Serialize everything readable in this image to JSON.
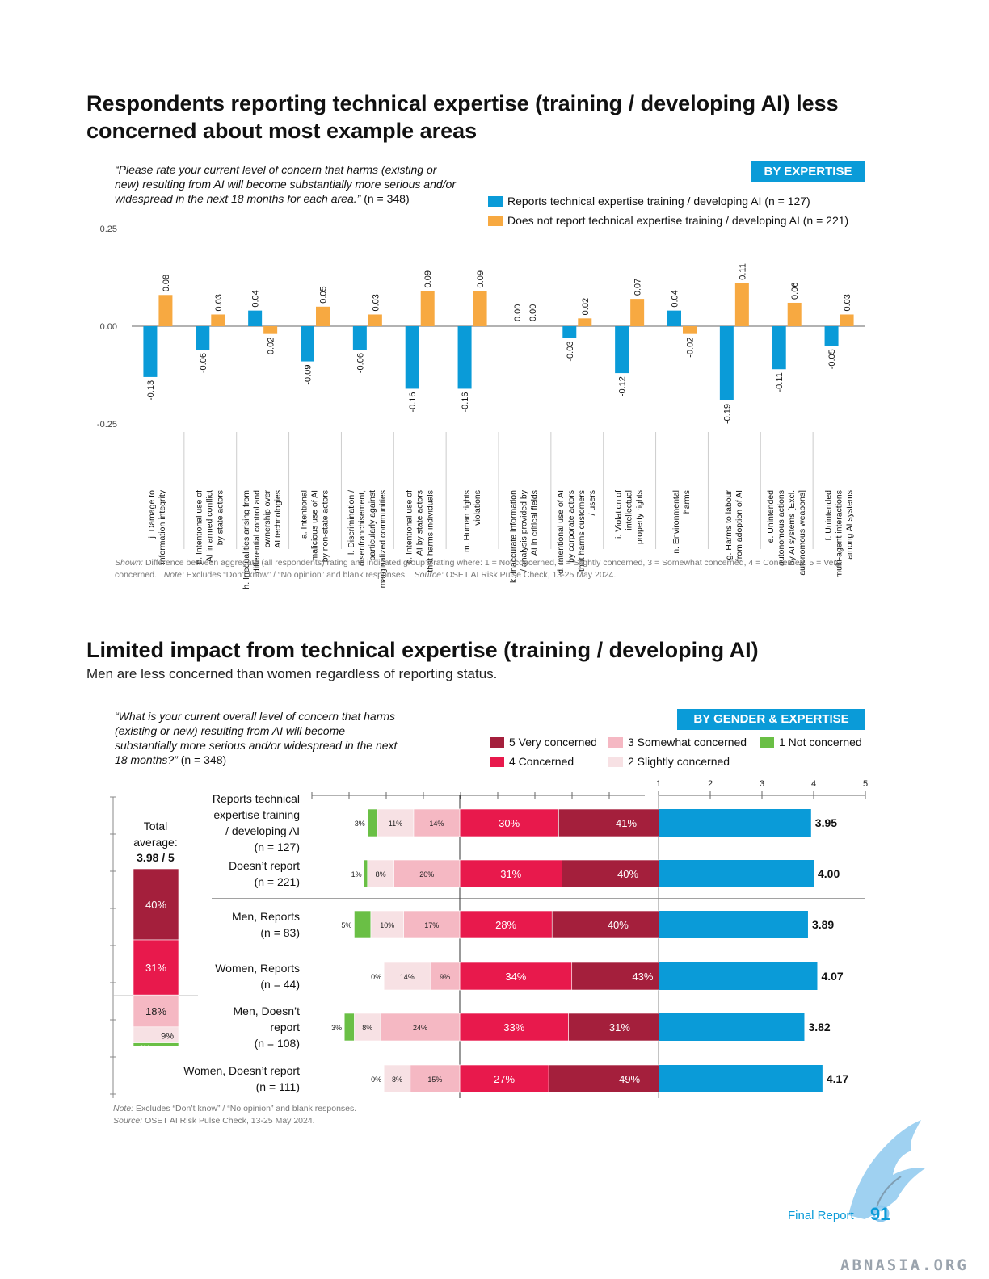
{
  "chart1": {
    "title": "Respondents reporting technical expertise (training / developing AI) less concerned about most example areas",
    "question": "“Please rate your current level of concern that harms (existing or new) resulting from AI will become substantially more serious and/or widespread in the next 18 months for each area.”",
    "question_n": "(n = 348)",
    "badge": "BY EXPERTISE",
    "legend": [
      {
        "label": "Reports technical expertise training / developing AI (n = 127)",
        "color": "#0a9bd8"
      },
      {
        "label": "Does not report technical expertise training / developing AI (n = 221)",
        "color": "#f7a941"
      }
    ],
    "footnote_shown_label": "Shown:",
    "footnote_shown": "Difference between aggregate (all respondents) rating and indicated group’s rating where: 1 = Not concerned, 2 = Slightly concerned, 3 = Somewhat concerned, 4 = Concerned, 5 = Very concerned.",
    "footnote_note_label": "Note:",
    "footnote_note": "Excludes “Don’t know” / “No opinion” and blank responses.",
    "footnote_source_label": "Source:",
    "footnote_source": "OSET AI Risk Pulse Check, 13-25 May 2024."
  },
  "chart2": {
    "title": "Limited impact from technical expertise (training / developing AI)",
    "subtitle": "Men are less concerned than women regardless of reporting status.",
    "question": "“What is your current overall level of concern that harms (existing or new) resulting from AI will become substantially more serious and/or widespread in the next 18 months?”",
    "question_n": "(n = 348)",
    "badge": "BY GENDER & EXPERTISE",
    "legend": [
      {
        "label": "5 Very concerned",
        "color": "#a41f3c"
      },
      {
        "label": "3 Somewhat concerned",
        "color": "#f5b8c3"
      },
      {
        "label": "1 Not concerned",
        "color": "#6abf45"
      },
      {
        "label": "4 Concerned",
        "color": "#e8194c"
      },
      {
        "label": "2 Slightly concerned",
        "color": "#f7e1e4"
      }
    ],
    "total_label": "Total\naverage:",
    "total_value": "3.98 / 5",
    "note_label": "Note:",
    "note": "Excludes “Don’t know” / “No opinion” and blank responses.",
    "source_label": "Source:",
    "source": "OSET AI Risk Pulse Check, 13-25 May 2024."
  },
  "page": {
    "footer_label": "Final Report",
    "page_number": "91",
    "watermark": "ABNASIA.ORG"
  },
  "chart_data": [
    {
      "type": "bar",
      "ylim": [
        -0.25,
        0.25
      ],
      "yticks": [
        "0.25",
        "0.00",
        "-0.25"
      ],
      "grid": false,
      "categories": [
        "j. Damage to\ninformation integrity",
        "b. Intentional use of\nAI in armed conflict\nby state actors",
        "h. Inequalities arising from\ndifferential control and\nownership over\nAI technologies",
        "a. Intentional\nmalicious use of AI\nby non-state actors",
        "l. Discrimination /\ndisenfranchisement,\nparticularly against\nmarginalized communities",
        "c. Intentional use of\nAI by state actors\nthat harms individuals",
        "m. Human rights\nviolations",
        "k. Inaccurate information\n/ analysis provided by\nAI in critical fields",
        "d. Intentional use of AI\nby corporate actors\nthat harms customers\n/ users",
        "i. Violation of\nintellectual\nproperty rights",
        "n. Environmental\nharms",
        "g. Harms to labour\nfrom adoption of AI",
        "e. Unintended\nautonomous actions\nby AI systems [Excl.\nautonomous weapons]",
        "f. Unintended\nmulti-agent interactions\namong AI systems"
      ],
      "series": [
        {
          "name": "Reports technical expertise training / developing AI (n = 127)",
          "values": [
            -0.13,
            -0.06,
            0.04,
            -0.09,
            -0.06,
            -0.16,
            -0.16,
            0.0,
            -0.03,
            -0.12,
            0.04,
            -0.19,
            -0.11,
            -0.05
          ],
          "labels": [
            "-0.13",
            "-0.06",
            "0.04",
            "-0.09",
            "-0.06",
            "-0.16",
            "-0.16",
            "0.00",
            "-0.03",
            "-0.12",
            "0.04",
            "-0.19",
            "-0.11",
            "-0.05"
          ]
        },
        {
          "name": "Does not report technical expertise training / developing AI (n = 221)",
          "values": [
            0.08,
            0.03,
            -0.02,
            0.05,
            0.03,
            0.09,
            0.09,
            0.0,
            0.02,
            0.07,
            -0.02,
            0.11,
            0.06,
            0.03
          ],
          "labels": [
            "0.08",
            "0.03",
            "-0.02",
            "0.05",
            "0.03",
            "0.09",
            "0.09",
            "0.00",
            "0.02",
            "0.07",
            "-0.02",
            "0.11",
            "0.06",
            "0.03"
          ]
        }
      ]
    },
    {
      "type": "bar",
      "stacked": "diverging",
      "categories": [
        "Reports technical\nexpertise training\n/ developing AI\n(n = 127)",
        "Doesn’t report\n(n = 221)",
        "Men, Reports\n(n = 83)",
        "Women, Reports\n(n = 44)",
        "Men, Doesn’t\nreport\n(n = 108)",
        "Women, Doesn’t report\n(n = 111)"
      ],
      "series": [
        {
          "name": "1 Not concerned",
          "values": [
            3,
            1,
            5,
            0,
            3,
            0
          ],
          "labels": [
            "3%",
            "1%",
            "5%",
            "0%",
            "3%",
            "0%"
          ]
        },
        {
          "name": "2 Slightly concerned",
          "values": [
            11,
            8,
            10,
            14,
            8,
            8
          ],
          "labels": [
            "11%",
            "8%",
            "10%",
            "14%",
            "8%",
            "8%"
          ]
        },
        {
          "name": "3 Somewhat concerned",
          "values": [
            14,
            20,
            17,
            9,
            24,
            15
          ],
          "labels": [
            "14%",
            "20%",
            "17%",
            "9%",
            "24%",
            "15%"
          ]
        },
        {
          "name": "4 Concerned",
          "values": [
            30,
            31,
            28,
            34,
            33,
            27
          ],
          "labels": [
            "30%",
            "31%",
            "28%",
            "34%",
            "33%",
            "27%"
          ]
        },
        {
          "name": "5 Very concerned",
          "values": [
            41,
            40,
            40,
            43,
            31,
            49
          ],
          "labels": [
            "41%",
            "40%",
            "40%",
            "43%",
            "31%",
            "49%"
          ]
        }
      ]
    },
    {
      "type": "bar",
      "orientation": "horizontal",
      "xlim": [
        1,
        5
      ],
      "xticks": [
        "1",
        "2",
        "3",
        "4",
        "5"
      ],
      "values": [
        3.95,
        4.0,
        3.89,
        4.07,
        3.82,
        4.17
      ],
      "labels": [
        "3.95",
        "4.00",
        "3.89",
        "4.07",
        "3.82",
        "4.17"
      ],
      "color": "#0a9bd8"
    },
    {
      "type": "bar",
      "stacked": true,
      "categories": [
        "Total average"
      ],
      "series": [
        {
          "name": "5 Very concerned",
          "value": 40,
          "label": "40%"
        },
        {
          "name": "4 Concerned",
          "value": 31,
          "label": "31%"
        },
        {
          "name": "3 Somewhat concerned",
          "value": 18,
          "label": "18%"
        },
        {
          "name": "2 Slightly concerned",
          "value": 9,
          "label": "9%"
        },
        {
          "name": "1 Not concerned",
          "value": 2,
          "label": "2%"
        }
      ]
    }
  ]
}
